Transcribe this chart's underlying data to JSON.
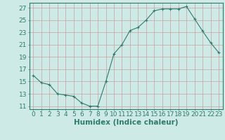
{
  "x": [
    0,
    1,
    2,
    3,
    4,
    5,
    6,
    7,
    8,
    9,
    10,
    11,
    12,
    13,
    14,
    15,
    16,
    17,
    18,
    19,
    20,
    21,
    22,
    23
  ],
  "y": [
    16.0,
    14.8,
    14.5,
    13.0,
    12.8,
    12.6,
    11.5,
    11.0,
    11.0,
    15.0,
    19.5,
    21.0,
    23.3,
    23.8,
    25.0,
    26.5,
    26.8,
    26.8,
    26.8,
    27.2,
    25.2,
    23.2,
    21.3,
    19.7
  ],
  "line_color": "#2e7b6e",
  "marker": "+",
  "marker_size": 3,
  "bg_color": "#ceeae6",
  "grid_color": "#c8a0a0",
  "xlabel": "Humidex (Indice chaleur)",
  "ylabel_ticks": [
    11,
    13,
    15,
    17,
    19,
    21,
    23,
    25,
    27
  ],
  "xlim": [
    -0.5,
    23.5
  ],
  "ylim": [
    10.5,
    27.8
  ],
  "tick_color": "#2e7b6e",
  "label_color": "#2e7b6e",
  "font_size": 6.5,
  "xlabel_fontsize": 7.5
}
